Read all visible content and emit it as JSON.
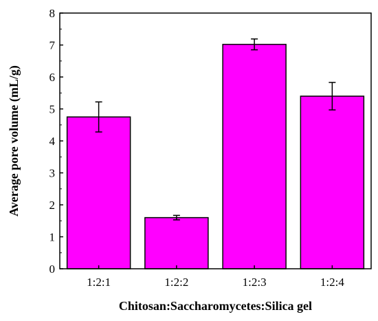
{
  "chart_data": {
    "type": "bar",
    "title": "",
    "xlabel": "Chitosan:Saccharomycetes:Silica gel",
    "ylabel": "Average pore volume (mL/g)",
    "categories": [
      "1:2:1",
      "1:2:2",
      "1:2:3",
      "1:2:4"
    ],
    "values": [
      4.75,
      1.6,
      7.02,
      5.4
    ],
    "errors": [
      0.47,
      0.07,
      0.17,
      0.43
    ],
    "ylim": [
      0,
      8
    ],
    "yticks": [
      0,
      1,
      2,
      3,
      4,
      5,
      6,
      7,
      8
    ],
    "bar_color": "#ff00ff",
    "edge_color": "#000000",
    "grid": false,
    "legend": "none"
  }
}
